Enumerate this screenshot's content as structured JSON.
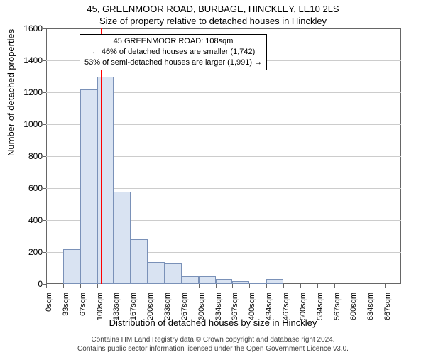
{
  "title_line1": "45, GREENMOOR ROAD, BURBAGE, HINCKLEY, LE10 2LS",
  "title_line2": "Size of property relative to detached houses in Hinckley",
  "annotation": {
    "line1": "45 GREENMOOR ROAD: 108sqm",
    "line2": "← 46% of detached houses are smaller (1,742)",
    "line3": "53% of semi-detached houses are larger (1,991) →"
  },
  "y_axis_label": "Number of detached properties",
  "x_axis_label": "Distribution of detached houses by size in Hinckley",
  "footer_line1": "Contains HM Land Registry data © Crown copyright and database right 2024.",
  "footer_line2": "Contains public sector information licensed under the Open Government Licence v3.0.",
  "chart": {
    "type": "histogram",
    "background_color": "#ffffff",
    "bar_fill": "#d9e3f2",
    "bar_border": "#7a91b8",
    "grid_color": "#cccccc",
    "axis_color": "#666666",
    "marker_color": "#ff0000",
    "marker_x_value": 108,
    "x_tick_labels": [
      "0sqm",
      "33sqm",
      "67sqm",
      "100sqm",
      "133sqm",
      "167sqm",
      "200sqm",
      "233sqm",
      "267sqm",
      "300sqm",
      "334sqm",
      "367sqm",
      "400sqm",
      "434sqm",
      "467sqm",
      "500sqm",
      "534sqm",
      "567sqm",
      "600sqm",
      "634sqm",
      "667sqm"
    ],
    "x_tick_spacing": 33.4,
    "x_min": 0,
    "x_max": 700,
    "y_ticks": [
      0,
      200,
      400,
      600,
      800,
      1000,
      1200,
      1400,
      1600
    ],
    "y_min": 0,
    "y_max": 1600,
    "values": [
      0,
      220,
      1220,
      1300,
      580,
      280,
      140,
      130,
      50,
      50,
      30,
      20,
      5,
      30,
      0,
      0,
      0,
      0,
      0,
      0,
      0
    ],
    "title_fontsize": 13,
    "label_fontsize": 13,
    "tick_fontsize": 12
  }
}
